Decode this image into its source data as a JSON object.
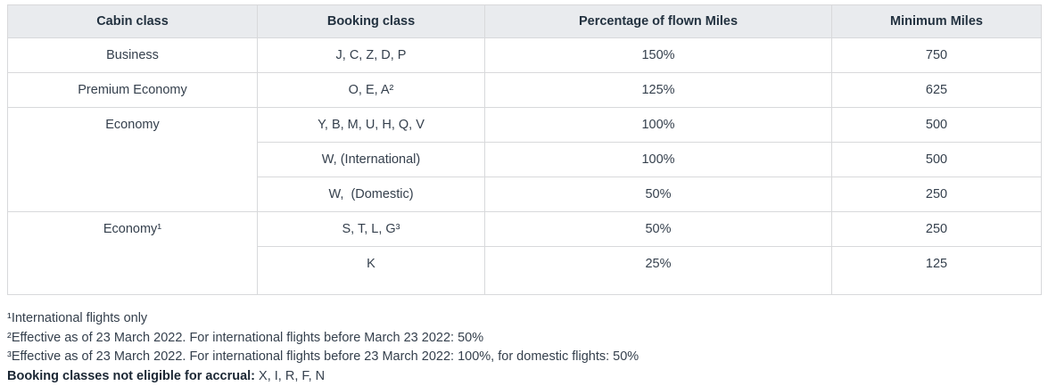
{
  "colors": {
    "header_bg": "#e9ebee",
    "border": "#d8d9db",
    "text": "#35404d",
    "heading_text": "#233240",
    "strong_text": "#1b2734"
  },
  "table": {
    "headers": [
      "Cabin class",
      "Booking class",
      "Percentage of flown Miles",
      "Minimum Miles"
    ],
    "rows": [
      {
        "cabin": "Business",
        "cabin_rowspan": 1,
        "booking": "J, C, Z, D, P",
        "percentage": "150%",
        "minimum": "750"
      },
      {
        "cabin": "Premium Economy",
        "cabin_rowspan": 1,
        "booking": "O, E, A²",
        "percentage": "125%",
        "minimum": "625"
      },
      {
        "cabin": "Economy",
        "cabin_rowspan": 3,
        "booking": "Y, B, M, U, H, Q, V",
        "percentage": "100%",
        "minimum": "500"
      },
      {
        "booking": "W, (International)",
        "percentage": "100%",
        "minimum": "500"
      },
      {
        "booking": "W,  (Domestic)",
        "percentage": "50%",
        "minimum": "250"
      },
      {
        "cabin": "Economy¹",
        "cabin_rowspan": 2,
        "booking": "S, T, L, G³",
        "percentage": "50%",
        "minimum": "250"
      },
      {
        "booking": "K",
        "percentage": "25%",
        "minimum": "125"
      }
    ]
  },
  "footnotes": [
    "¹International flights only",
    "²Effective as of 23 March 2022. For international flights before March 23 2022: 50%",
    "³Effective as of 23 March 2022. For international flights before 23 March 2022: 100%, for domestic flights: 50%"
  ],
  "not_eligible": {
    "label": "Booking classes not eligible for accrual:",
    "value": " X, I, R, F, N"
  }
}
